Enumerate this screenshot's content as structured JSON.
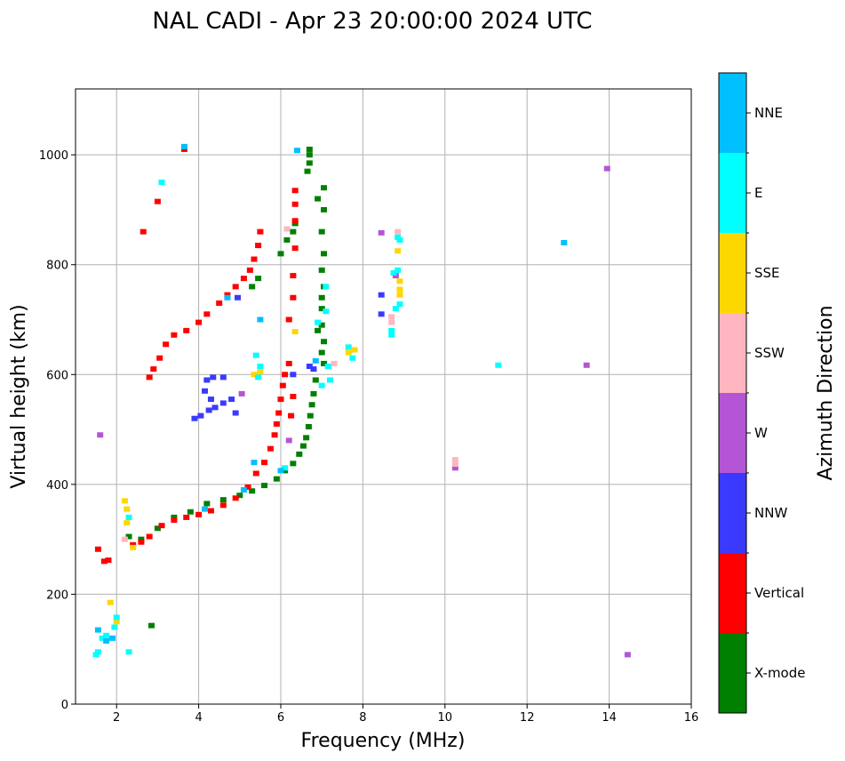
{
  "chart_data": {
    "type": "scatter",
    "title": "NAL CADI - Apr 23 20:00:00 2024 UTC",
    "xlabel": "Frequency (MHz)",
    "ylabel": "Virtual height (km)",
    "xlim": [
      1,
      16
    ],
    "ylim": [
      0,
      1120
    ],
    "xticks": [
      2,
      4,
      6,
      8,
      10,
      12,
      14,
      16
    ],
    "yticks": [
      0,
      200,
      400,
      600,
      800,
      1000
    ],
    "grid": true,
    "colorbar": {
      "label": "Azimuth Direction",
      "categories": [
        {
          "name": "X-mode",
          "color": "#008000"
        },
        {
          "name": "Vertical",
          "color": "#ff0000"
        },
        {
          "name": "NNW",
          "color": "#3a3aff"
        },
        {
          "name": "W",
          "color": "#b455d6"
        },
        {
          "name": "SSW",
          "color": "#ffb6c1"
        },
        {
          "name": "SSE",
          "color": "#ffd700"
        },
        {
          "name": "E",
          "color": "#00ffff"
        },
        {
          "name": "NNE",
          "color": "#00bfff"
        }
      ]
    },
    "series": [
      {
        "name": "X-mode",
        "points": [
          [
            2.3,
            305
          ],
          [
            2.6,
            300
          ],
          [
            3.0,
            320
          ],
          [
            3.4,
            340
          ],
          [
            3.8,
            350
          ],
          [
            4.2,
            365
          ],
          [
            4.6,
            372
          ],
          [
            5.0,
            380
          ],
          [
            5.3,
            388
          ],
          [
            5.6,
            398
          ],
          [
            5.9,
            410
          ],
          [
            6.1,
            425
          ],
          [
            6.3,
            438
          ],
          [
            6.45,
            455
          ],
          [
            6.55,
            470
          ],
          [
            6.62,
            485
          ],
          [
            6.68,
            505
          ],
          [
            6.72,
            525
          ],
          [
            6.76,
            545
          ],
          [
            6.8,
            565
          ],
          [
            6.85,
            590
          ],
          [
            5.3,
            760
          ],
          [
            5.45,
            775
          ],
          [
            6.0,
            820
          ],
          [
            6.15,
            845
          ],
          [
            6.3,
            860
          ],
          [
            6.35,
            875
          ],
          [
            6.7,
            1000
          ],
          [
            6.65,
            970
          ],
          [
            6.7,
            985
          ],
          [
            6.9,
            920
          ],
          [
            7.05,
            900
          ],
          [
            7.0,
            860
          ],
          [
            7.05,
            820
          ],
          [
            7.0,
            790
          ],
          [
            7.05,
            760
          ],
          [
            7.0,
            720
          ],
          [
            7.0,
            690
          ],
          [
            7.05,
            660
          ],
          [
            7.0,
            640
          ],
          [
            7.05,
            620
          ],
          [
            6.9,
            680
          ],
          [
            7.0,
            740
          ],
          [
            6.7,
            1010
          ],
          [
            7.05,
            940
          ],
          [
            2.85,
            143
          ]
        ]
      },
      {
        "name": "Vertical",
        "points": [
          [
            2.4,
            290
          ],
          [
            2.6,
            295
          ],
          [
            2.8,
            305
          ],
          [
            3.1,
            325
          ],
          [
            3.4,
            335
          ],
          [
            3.7,
            340
          ],
          [
            4.0,
            345
          ],
          [
            4.3,
            352
          ],
          [
            4.6,
            362
          ],
          [
            4.9,
            375
          ],
          [
            5.2,
            395
          ],
          [
            5.4,
            420
          ],
          [
            5.6,
            440
          ],
          [
            5.75,
            465
          ],
          [
            5.85,
            490
          ],
          [
            5.9,
            510
          ],
          [
            5.95,
            530
          ],
          [
            6.0,
            555
          ],
          [
            6.05,
            580
          ],
          [
            6.1,
            600
          ],
          [
            6.2,
            620
          ],
          [
            2.8,
            595
          ],
          [
            2.9,
            610
          ],
          [
            3.05,
            630
          ],
          [
            3.2,
            655
          ],
          [
            3.4,
            672
          ],
          [
            3.7,
            680
          ],
          [
            4.0,
            695
          ],
          [
            4.2,
            710
          ],
          [
            4.5,
            730
          ],
          [
            4.7,
            745
          ],
          [
            4.9,
            760
          ],
          [
            5.1,
            775
          ],
          [
            5.25,
            790
          ],
          [
            5.35,
            810
          ],
          [
            5.45,
            835
          ],
          [
            5.5,
            860
          ],
          [
            6.3,
            740
          ],
          [
            6.3,
            780
          ],
          [
            6.35,
            830
          ],
          [
            6.35,
            880
          ],
          [
            6.35,
            910
          ],
          [
            6.35,
            935
          ],
          [
            6.2,
            700
          ],
          [
            1.7,
            260
          ],
          [
            1.8,
            262
          ],
          [
            1.55,
            282
          ],
          [
            3.0,
            915
          ],
          [
            2.65,
            860
          ],
          [
            3.65,
            1010
          ],
          [
            6.3,
            560
          ],
          [
            6.25,
            525
          ]
        ]
      },
      {
        "name": "NNW",
        "points": [
          [
            3.9,
            520
          ],
          [
            4.05,
            525
          ],
          [
            4.25,
            535
          ],
          [
            4.4,
            540
          ],
          [
            4.6,
            548
          ],
          [
            4.8,
            555
          ],
          [
            4.3,
            555
          ],
          [
            4.15,
            570
          ],
          [
            4.2,
            590
          ],
          [
            4.35,
            595
          ],
          [
            4.6,
            595
          ],
          [
            4.9,
            530
          ],
          [
            6.7,
            615
          ],
          [
            6.8,
            610
          ],
          [
            8.45,
            745
          ],
          [
            8.45,
            710
          ],
          [
            6.3,
            600
          ],
          [
            4.95,
            740
          ]
        ]
      },
      {
        "name": "W",
        "points": [
          [
            8.45,
            858
          ],
          [
            10.25,
            430
          ],
          [
            13.45,
            617
          ],
          [
            13.95,
            975
          ],
          [
            14.45,
            90
          ],
          [
            1.6,
            490
          ],
          [
            5.05,
            565
          ],
          [
            6.2,
            480
          ],
          [
            8.8,
            780
          ]
        ]
      },
      {
        "name": "SSW",
        "points": [
          [
            8.7,
            705
          ],
          [
            8.7,
            695
          ],
          [
            8.85,
            860
          ],
          [
            10.25,
            445
          ],
          [
            10.25,
            437
          ],
          [
            6.15,
            865
          ],
          [
            7.3,
            620
          ],
          [
            2.2,
            300
          ]
        ]
      },
      {
        "name": "SSE",
        "points": [
          [
            2.25,
            330
          ],
          [
            2.25,
            355
          ],
          [
            2.2,
            370
          ],
          [
            8.9,
            755
          ],
          [
            8.9,
            745
          ],
          [
            8.85,
            825
          ],
          [
            8.9,
            770
          ],
          [
            7.65,
            640
          ],
          [
            7.8,
            645
          ],
          [
            5.35,
            600
          ],
          [
            5.5,
            605
          ],
          [
            1.85,
            185
          ],
          [
            2.0,
            150
          ],
          [
            6.35,
            678
          ],
          [
            2.4,
            285
          ]
        ]
      },
      {
        "name": "E",
        "points": [
          [
            8.7,
            680
          ],
          [
            8.7,
            672
          ],
          [
            8.8,
            720
          ],
          [
            8.75,
            785
          ],
          [
            8.85,
            790
          ],
          [
            8.85,
            850
          ],
          [
            8.9,
            728
          ],
          [
            7.75,
            630
          ],
          [
            7.65,
            650
          ],
          [
            7.1,
            715
          ],
          [
            7.1,
            760
          ],
          [
            5.5,
            615
          ],
          [
            5.4,
            635
          ],
          [
            5.45,
            595
          ],
          [
            7.15,
            615
          ],
          [
            7.0,
            580
          ],
          [
            7.2,
            590
          ],
          [
            11.3,
            617
          ],
          [
            1.55,
            95
          ],
          [
            1.5,
            90
          ],
          [
            2.3,
            95
          ],
          [
            1.65,
            120
          ],
          [
            1.75,
            125
          ],
          [
            1.95,
            140
          ],
          [
            2.0,
            158
          ],
          [
            6.1,
            430
          ],
          [
            6.9,
            695
          ],
          [
            3.1,
            950
          ],
          [
            2.3,
            340
          ],
          [
            8.9,
            845
          ]
        ]
      },
      {
        "name": "NNE",
        "points": [
          [
            6.4,
            1008
          ],
          [
            12.9,
            840
          ],
          [
            3.65,
            1015
          ],
          [
            5.5,
            700
          ],
          [
            4.7,
            740
          ],
          [
            6.0,
            425
          ],
          [
            5.1,
            390
          ],
          [
            1.55,
            135
          ],
          [
            1.75,
            115
          ],
          [
            1.9,
            120
          ],
          [
            5.35,
            440
          ],
          [
            4.15,
            355
          ],
          [
            6.85,
            625
          ]
        ]
      }
    ]
  }
}
